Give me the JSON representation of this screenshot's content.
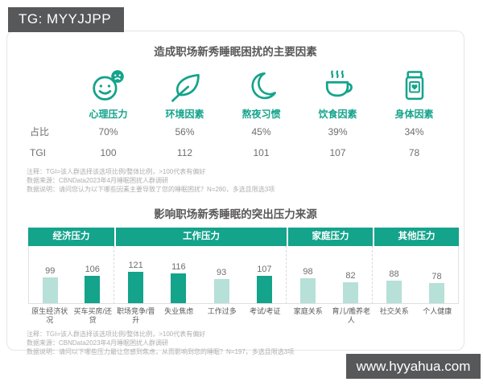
{
  "tag": "TG: MYYJJPP",
  "website": "www.hyyahua.com",
  "colors": {
    "teal": "#14a38b",
    "teal_light": "#b6e0d8",
    "bar_dark_gray": "#57585a"
  },
  "section1": {
    "title": "造成职场新秀睡眠困扰的主要因素",
    "row_labels": {
      "share": "占比",
      "tgi": "TGI"
    },
    "factors": [
      {
        "icon": "smiley-moody-icon",
        "label": "心理压力",
        "share": "70%",
        "tgi": "100"
      },
      {
        "icon": "leaf-icon",
        "label": "环境因素",
        "share": "56%",
        "tgi": "112"
      },
      {
        "icon": "moon-icon",
        "label": "熬夜习惯",
        "share": "45%",
        "tgi": "101"
      },
      {
        "icon": "cup-icon",
        "label": "饮食因素",
        "share": "39%",
        "tgi": "107"
      },
      {
        "icon": "pill-bottle-icon",
        "label": "身体因素",
        "share": "34%",
        "tgi": "78"
      }
    ],
    "notes": [
      "注释：TGI=该人群选择该选项比例/整体比例，>100代表有偏好",
      "数据来源：CBNData2023年4月睡眠困扰人群调研",
      "数据说明：请问您认为以下哪些因素主要导致了您的睡眠困扰？N=280，多选且限选3项"
    ]
  },
  "section2": {
    "title": "影响职场新秀睡眠的突出压力来源",
    "notes": [
      "注释：TGI=该人群选择该选项比例/整体比例，>100代表有偏好",
      "数据来源：CBNData2023年4月睡眠困扰人群调研",
      "数据说明：请问以下哪些压力最让您感到焦虑，从而影响到您的睡眠？N=197，多选且限选3项"
    ]
  },
  "chart_data": {
    "type": "bar",
    "title": "影响职场新秀睡眠的突出压力来源",
    "value_meaning": "TGI",
    "groups": [
      {
        "name": "经济压力",
        "bars": [
          {
            "label": "原生经济状况",
            "value": 99
          },
          {
            "label": "买车买房/还贷",
            "value": 106
          }
        ]
      },
      {
        "name": "工作压力",
        "bars": [
          {
            "label": "职场竞争/晋升",
            "value": 121
          },
          {
            "label": "失业焦虑",
            "value": 116
          },
          {
            "label": "工作过多",
            "value": 93
          },
          {
            "label": "考试/考证",
            "value": 107
          }
        ]
      },
      {
        "name": "家庭压力",
        "bars": [
          {
            "label": "家庭关系",
            "value": 98
          },
          {
            "label": "育儿/赡养老人",
            "value": 82
          }
        ]
      },
      {
        "name": "其他压力",
        "bars": [
          {
            "label": "社交关系",
            "value": 88
          },
          {
            "label": "个人健康",
            "value": 78
          }
        ]
      }
    ],
    "bar_color_rule": {
      "above_100": "#14a38b",
      "at_or_below_100": "#b6e0d8"
    },
    "gridlines": false
  }
}
